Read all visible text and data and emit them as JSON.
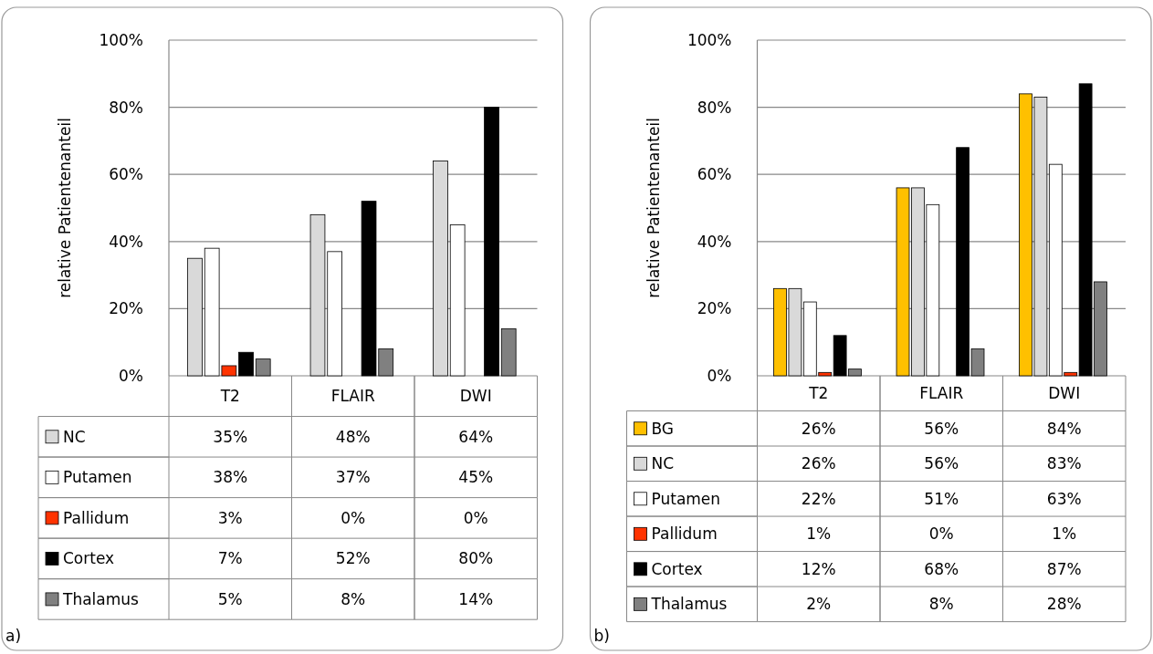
{
  "chart_data": [
    {
      "type": "bar",
      "ylabel": "relative Patientenanteil",
      "categories": [
        "T2",
        "FLAIR",
        "DWI"
      ],
      "ylim": [
        0,
        100
      ],
      "yticks": [
        {
          "value": 0,
          "label": "0%"
        },
        {
          "value": 20,
          "label": "20%"
        },
        {
          "value": 40,
          "label": "40%"
        },
        {
          "value": 60,
          "label": "60%"
        },
        {
          "value": 80,
          "label": "80%"
        },
        {
          "value": 100,
          "label": "100%"
        }
      ],
      "grid": "y",
      "legend": "bottom",
      "data_labels": true,
      "annotations": [
        "a)"
      ],
      "series": [
        {
          "name": "NC",
          "color": "#d9d9d9",
          "values": [
            35,
            48,
            64
          ],
          "value_labels": [
            "35%",
            "48%",
            "64%"
          ]
        },
        {
          "name": "Putamen",
          "color": "#ffffff",
          "values": [
            38,
            37,
            45
          ],
          "value_labels": [
            "38%",
            "37%",
            "45%"
          ]
        },
        {
          "name": "Pallidum",
          "color": "#ff3300",
          "values": [
            3,
            0,
            0
          ],
          "value_labels": [
            "3%",
            "0%",
            "0%"
          ]
        },
        {
          "name": "Cortex",
          "color": "#000000",
          "values": [
            7,
            52,
            80
          ],
          "value_labels": [
            "7%",
            "52%",
            "80%"
          ]
        },
        {
          "name": "Thalamus",
          "color": "#808080",
          "values": [
            5,
            8,
            14
          ],
          "value_labels": [
            "5%",
            "8%",
            "14%"
          ]
        }
      ]
    },
    {
      "type": "bar",
      "ylabel": "relative Patientenanteil",
      "categories": [
        "T2",
        "FLAIR",
        "DWI"
      ],
      "ylim": [
        0,
        100
      ],
      "yticks": [
        {
          "value": 0,
          "label": "0%"
        },
        {
          "value": 20,
          "label": "20%"
        },
        {
          "value": 40,
          "label": "40%"
        },
        {
          "value": 60,
          "label": "60%"
        },
        {
          "value": 80,
          "label": "80%"
        },
        {
          "value": 100,
          "label": "100%"
        }
      ],
      "grid": "y",
      "legend": "bottom",
      "data_labels": true,
      "annotations": [
        "b)"
      ],
      "series": [
        {
          "name": "BG",
          "color": "#ffc000",
          "values": [
            26,
            56,
            84
          ],
          "value_labels": [
            "26%",
            "56%",
            "84%"
          ]
        },
        {
          "name": "NC",
          "color": "#d9d9d9",
          "values": [
            26,
            56,
            83
          ],
          "value_labels": [
            "26%",
            "56%",
            "83%"
          ]
        },
        {
          "name": "Putamen",
          "color": "#ffffff",
          "values": [
            22,
            51,
            63
          ],
          "value_labels": [
            "22%",
            "51%",
            "63%"
          ]
        },
        {
          "name": "Pallidum",
          "color": "#ff3300",
          "values": [
            1,
            0,
            1
          ],
          "value_labels": [
            "1%",
            "0%",
            "1%"
          ]
        },
        {
          "name": "Cortex",
          "color": "#000000",
          "values": [
            12,
            68,
            87
          ],
          "value_labels": [
            "12%",
            "68%",
            "87%"
          ]
        },
        {
          "name": "Thalamus",
          "color": "#808080",
          "values": [
            2,
            8,
            28
          ],
          "value_labels": [
            "2%",
            "8%",
            "28%"
          ]
        }
      ]
    }
  ]
}
